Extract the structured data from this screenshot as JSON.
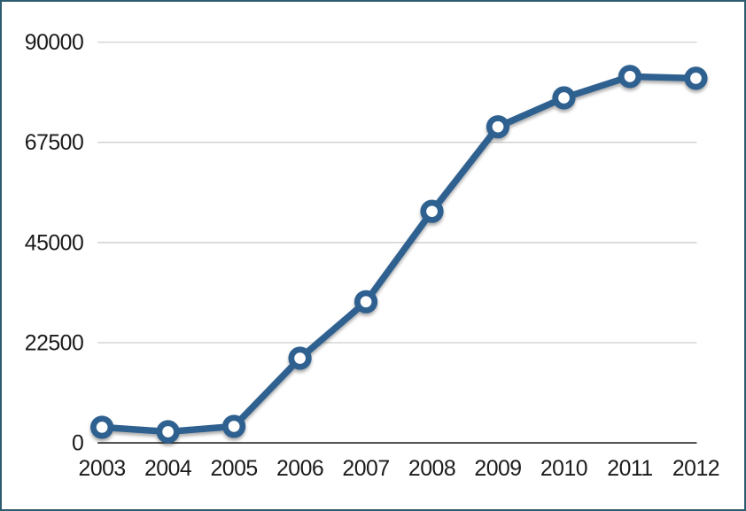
{
  "chart_data": {
    "type": "line",
    "title": "",
    "xlabel": "",
    "ylabel": "",
    "categories": [
      "2003",
      "2004",
      "2005",
      "2006",
      "2007",
      "2008",
      "2009",
      "2010",
      "2011",
      "2012"
    ],
    "values": [
      3500,
      2500,
      3700,
      19000,
      31700,
      52000,
      71000,
      77500,
      82300,
      81900
    ],
    "ylim": [
      0,
      90000
    ],
    "yticks": [
      0,
      22500,
      45000,
      67500,
      90000
    ],
    "grid": true,
    "legend": false,
    "marker": "open-circle",
    "line_width": 7.5,
    "colors": {
      "line": "#2e6090",
      "marker_fill": "#ffffff",
      "gridline": "#c9c9c9",
      "axis_line": "#262626",
      "tick_text": "#1b1b1b",
      "frame_border": "#2d5c6e",
      "background": "#ffffff"
    }
  }
}
